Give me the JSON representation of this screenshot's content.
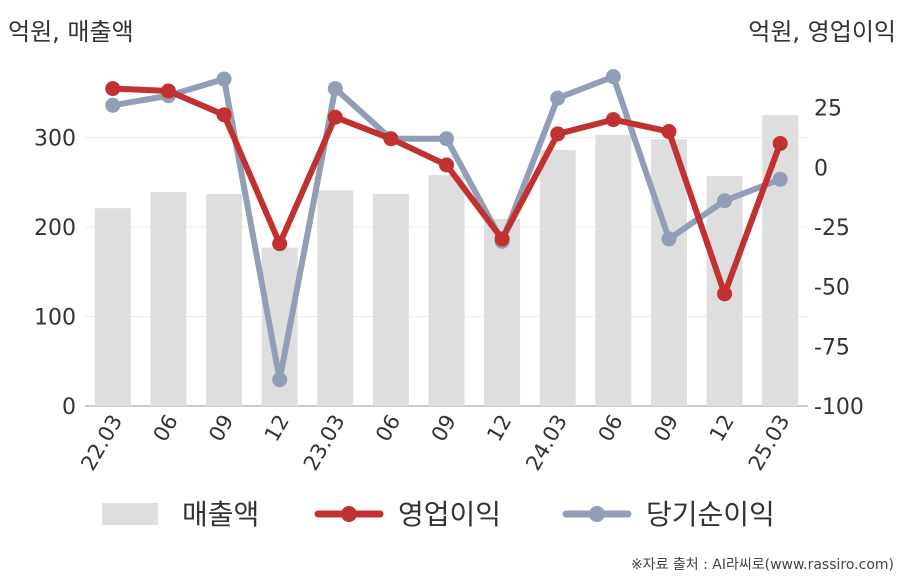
{
  "units": {
    "left": "억원, 매출액",
    "right": "억원, 영업이익"
  },
  "source": "※자료 출처 : AI라씨로(www.rassiro.com)",
  "chart_data": {
    "type": "bar+line",
    "categories": [
      "22.03",
      "06",
      "09",
      "12",
      "23.03",
      "06",
      "09",
      "12",
      "24.03",
      "06",
      "09",
      "12",
      "25.03"
    ],
    "left_axis": {
      "ylim": [
        0,
        400
      ],
      "ticks": [
        0,
        100,
        200,
        300
      ]
    },
    "right_axis": {
      "ylim": [
        -100,
        50
      ],
      "ticks": [
        25,
        0,
        -25,
        -50,
        -75,
        -100
      ]
    },
    "legend_position": "bottom",
    "series": [
      {
        "name": "매출액",
        "type": "bar",
        "axis": "left",
        "color": "#dedede",
        "values": [
          221,
          239,
          237,
          177,
          241,
          237,
          258,
          209,
          286,
          303,
          298,
          257,
          325
        ]
      },
      {
        "name": "영업이익",
        "type": "line",
        "axis": "right",
        "color": "#c0312f",
        "values": [
          33,
          32,
          22,
          -32,
          21,
          12,
          1,
          -30,
          14,
          20,
          15,
          -53,
          10
        ]
      },
      {
        "name": "당기순이익",
        "type": "line",
        "axis": "right",
        "color": "#929db6",
        "values": [
          26,
          30,
          37,
          -89,
          33,
          12,
          12,
          -31,
          29,
          38,
          -30,
          -14,
          -5
        ]
      }
    ]
  }
}
